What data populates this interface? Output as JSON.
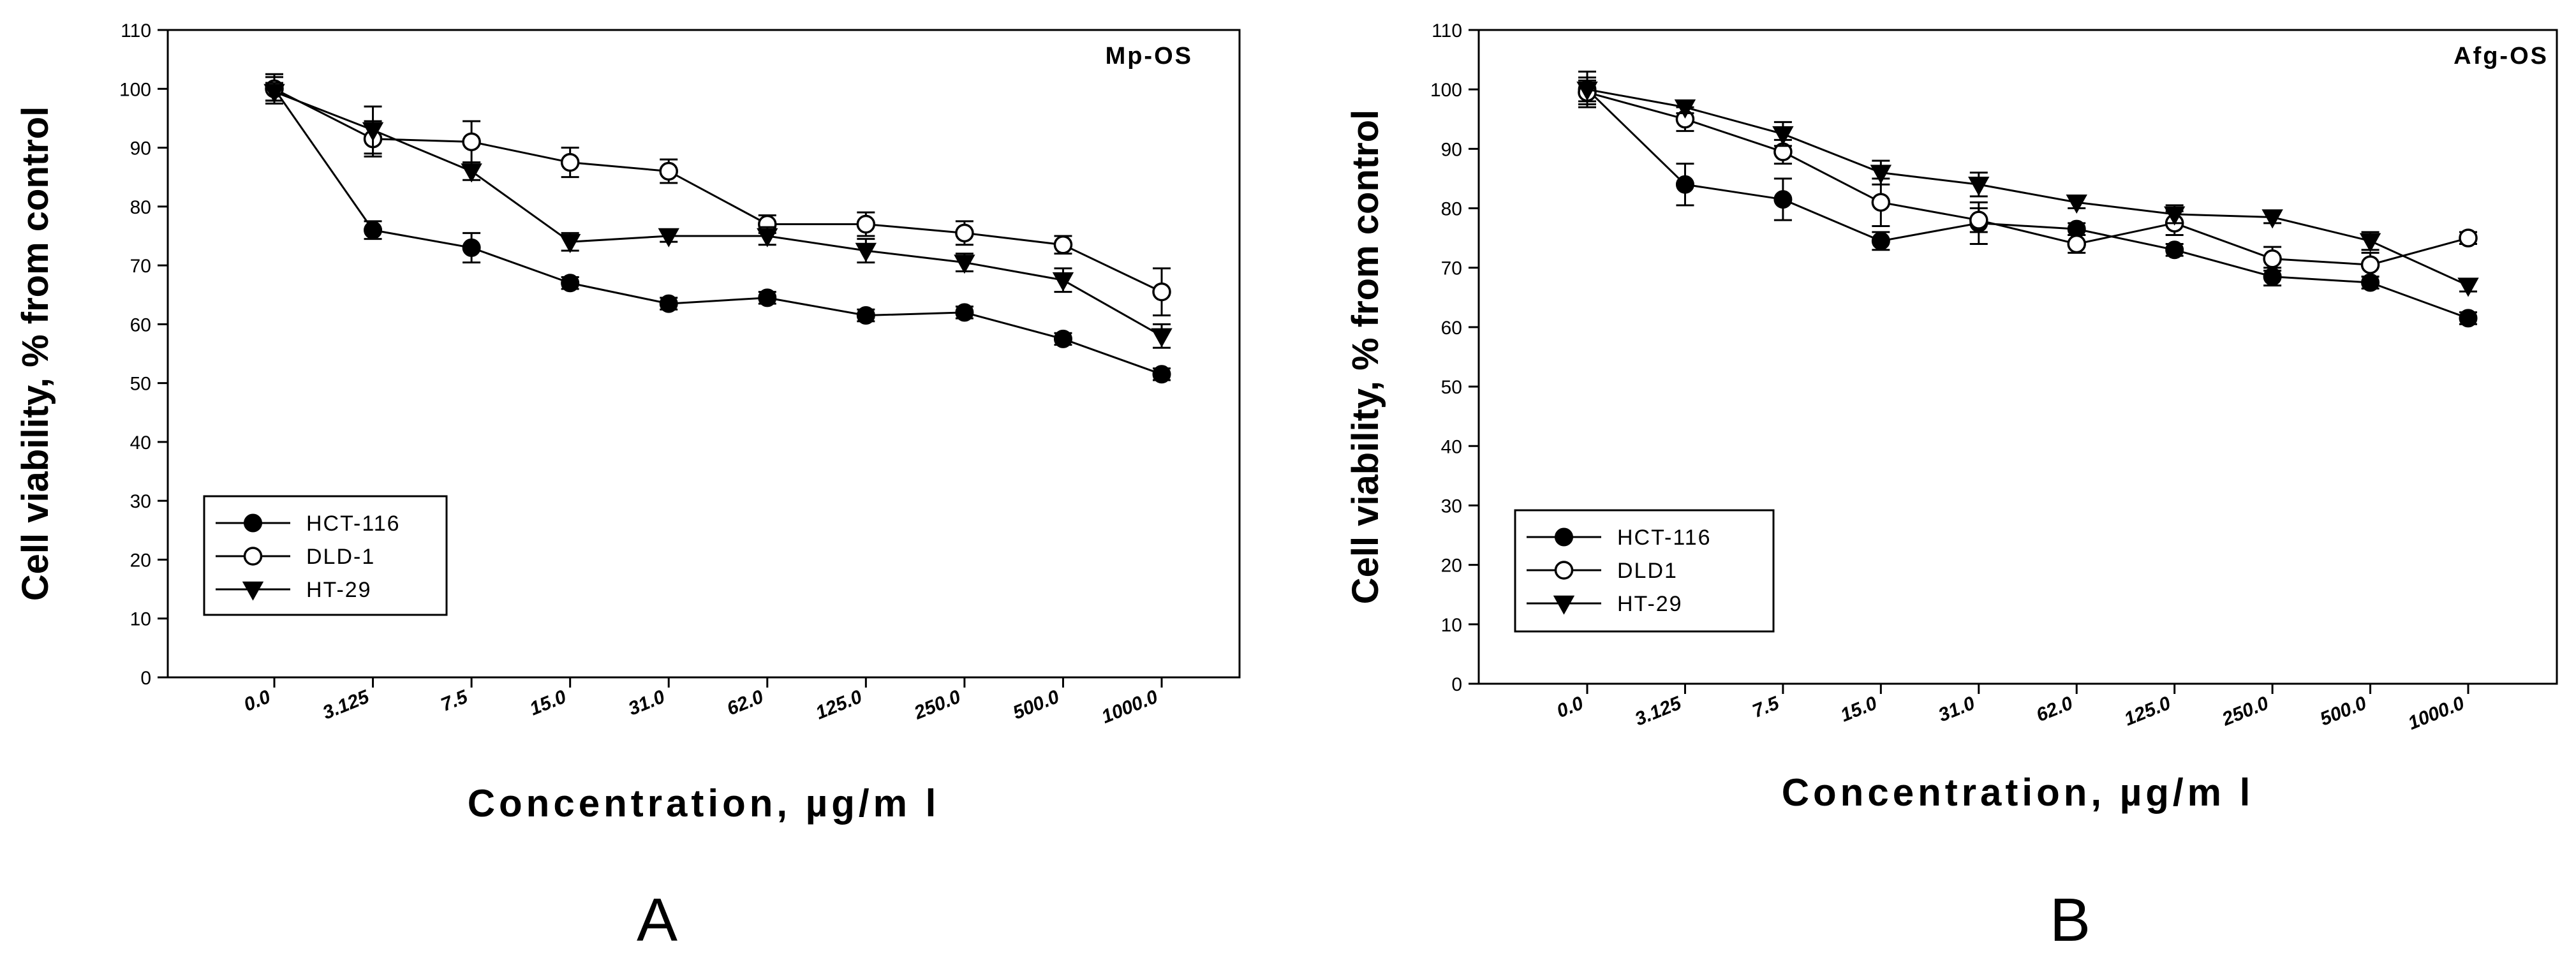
{
  "chart_data": [
    {
      "panel_label": "A",
      "type": "line",
      "title": "Mp-OS",
      "xlabel": "Concentration, µg/m l",
      "ylabel": "Cell viability, % from control",
      "ylim": [
        0,
        110
      ],
      "yticks": [
        "0",
        "10",
        "20",
        "30",
        "40",
        "50",
        "60",
        "70",
        "80",
        "90",
        "100",
        "110"
      ],
      "categories": [
        "0.0",
        "3.125",
        "7.5",
        "15.0",
        "31.0",
        "62.0",
        "125.0",
        "250.0",
        "500.0",
        "1000.0"
      ],
      "legend_position": "lower-left",
      "series": [
        {
          "name": "HCT-116",
          "marker": "filled-circle",
          "values": [
            100,
            76,
            73,
            67,
            63.5,
            64.5,
            61.5,
            62,
            57.5,
            51.5
          ],
          "errors": [
            2,
            1.5,
            2.5,
            1,
            1,
            1,
            1,
            1,
            1,
            1
          ]
        },
        {
          "name": "DLD-1",
          "marker": "open-circle",
          "values": [
            100,
            91.5,
            91,
            87.5,
            86,
            77,
            77,
            75.5,
            73.5,
            65.5
          ],
          "errors": [
            2.5,
            3,
            3.5,
            2.5,
            2,
            1.5,
            2,
            2,
            1.5,
            4
          ]
        },
        {
          "name": "HT-29",
          "marker": "filled-triangle-down",
          "values": [
            99.5,
            93,
            86,
            74,
            75,
            75,
            72.5,
            70.5,
            67.5,
            58
          ],
          "errors": [
            1.5,
            4,
            1.5,
            1.5,
            1,
            1.5,
            2,
            1.5,
            2,
            2
          ]
        }
      ]
    },
    {
      "panel_label": "B",
      "type": "line",
      "title": "Afg-OS",
      "xlabel": "Concentration, µg/m l",
      "ylabel": "Cell viability, % from control",
      "ylim": [
        0,
        110
      ],
      "yticks": [
        "0",
        "10",
        "20",
        "30",
        "40",
        "50",
        "60",
        "70",
        "80",
        "90",
        "100",
        "110"
      ],
      "categories": [
        "0.0",
        "3.125",
        "7.5",
        "15.0",
        "31.0",
        "62.0",
        "125.0",
        "250.0",
        "500.0",
        "1000.0"
      ],
      "legend_position": "lower-left",
      "series": [
        {
          "name": "HCT-116",
          "marker": "filled-circle",
          "values": [
            100,
            84,
            81.5,
            74.5,
            77.5,
            76.5,
            73,
            68.5,
            67.5,
            61.5
          ],
          "errors": [
            2,
            3.5,
            3.5,
            1.5,
            3.5,
            1,
            1,
            1.5,
            1,
            1
          ]
        },
        {
          "name": "DLD1",
          "marker": "open-circle",
          "values": [
            99.5,
            95,
            89.5,
            81,
            78,
            74,
            77.5,
            71.5,
            70.5,
            75
          ],
          "errors": [
            2,
            2,
            2,
            4,
            2,
            1.5,
            2,
            2,
            2,
            1
          ]
        },
        {
          "name": "HT-29",
          "marker": "filled-triangle-down",
          "values": [
            100,
            97,
            92.5,
            86,
            84,
            81,
            79,
            78.5,
            74.5,
            67
          ],
          "errors": [
            3,
            1,
            2,
            2,
            2,
            1,
            1.5,
            1,
            1.5,
            1
          ]
        }
      ]
    }
  ]
}
